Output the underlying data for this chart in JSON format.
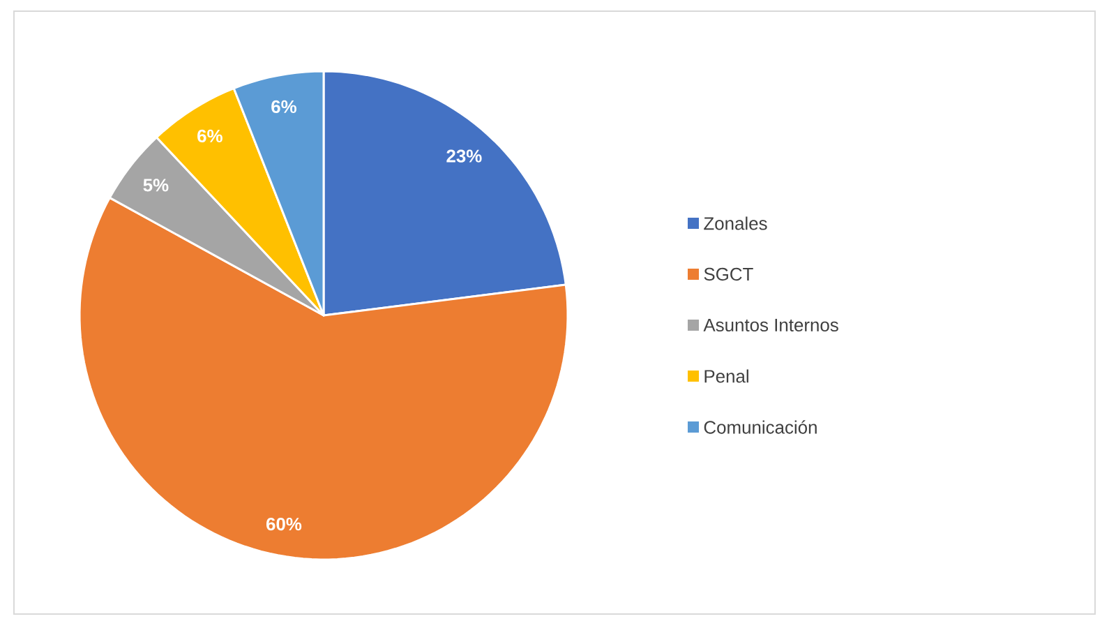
{
  "chart_data": {
    "type": "pie",
    "categories": [
      "Zonales",
      "SGCT",
      "Asuntos Internos",
      "Penal",
      "Comunicación"
    ],
    "values": [
      23,
      60,
      5,
      6,
      6
    ],
    "colors": [
      "#4472c4",
      "#ed7d31",
      "#a5a5a5",
      "#ffc000",
      "#5b9bd5"
    ],
    "value_labels": [
      "23%",
      "60%",
      "5%",
      "6%",
      "6%"
    ],
    "legend": "right"
  }
}
